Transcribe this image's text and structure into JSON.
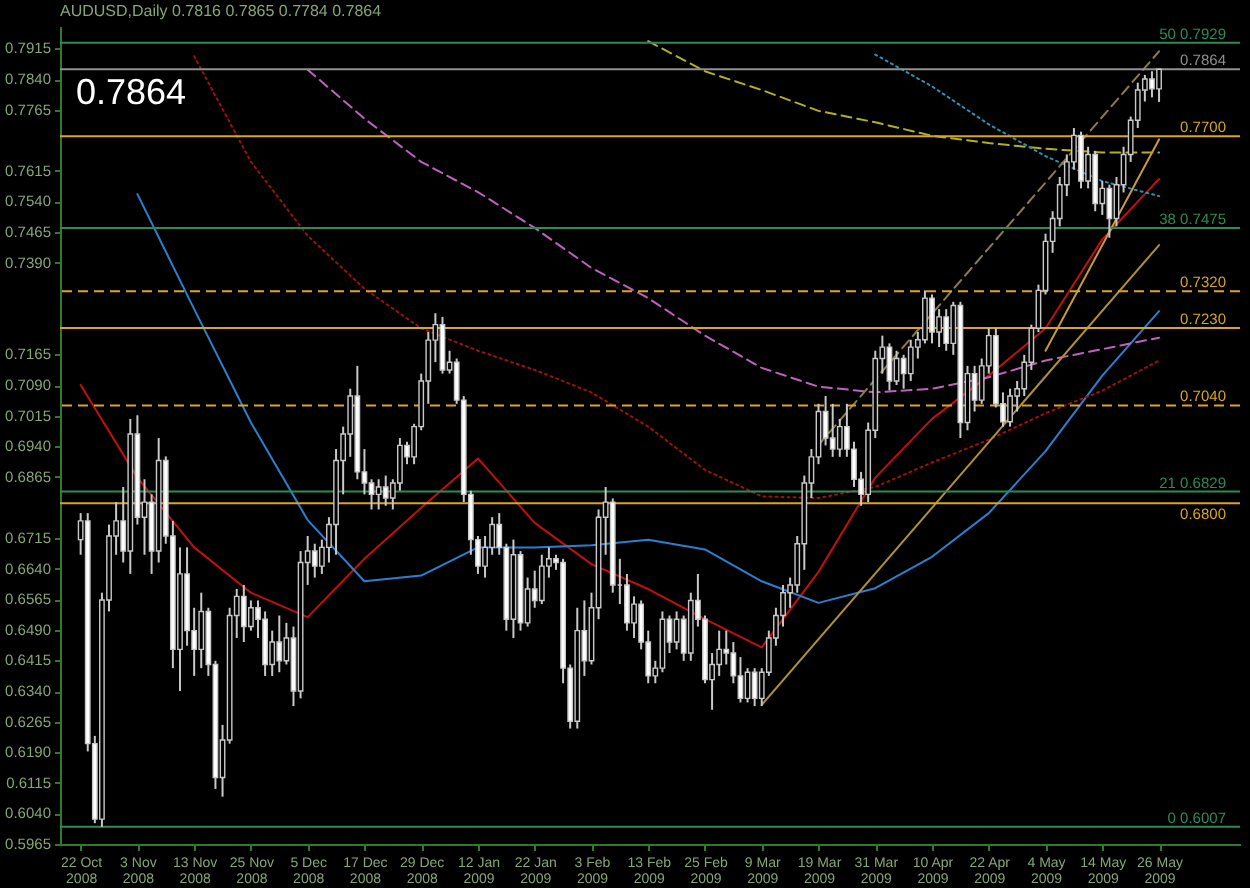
{
  "chart_data": {
    "type": "candlestick",
    "title": "AUDUSD,Daily  0.7816 0.7865 0.7784 0.7864",
    "annotations": [
      "0.7864"
    ],
    "categories": [
      "22 Oct 2008",
      null,
      null,
      null,
      null,
      null,
      null,
      null,
      "3 Nov 2008",
      null,
      null,
      null,
      null,
      null,
      null,
      null,
      "13 Nov 2008",
      null,
      null,
      null,
      null,
      null,
      null,
      null,
      "25 Nov 2008",
      null,
      null,
      null,
      null,
      null,
      null,
      null,
      "5 Dec 2008",
      null,
      null,
      null,
      null,
      null,
      null,
      null,
      "17 Dec 2008",
      null,
      null,
      null,
      null,
      null,
      null,
      null,
      "29 Dec 2008",
      null,
      null,
      null,
      null,
      null,
      null,
      null,
      "12 Jan 2009",
      null,
      null,
      null,
      null,
      null,
      null,
      null,
      "22 Jan 2009",
      null,
      null,
      null,
      null,
      null,
      null,
      null,
      "3 Feb 2009",
      null,
      null,
      null,
      null,
      null,
      null,
      null,
      "13 Feb 2009",
      null,
      null,
      null,
      null,
      null,
      null,
      null,
      "25 Feb 2009",
      null,
      null,
      null,
      null,
      null,
      null,
      null,
      "9 Mar 2009",
      null,
      null,
      null,
      null,
      null,
      null,
      null,
      "19 Mar 2009",
      null,
      null,
      null,
      null,
      null,
      null,
      null,
      "31 Mar 2009",
      null,
      null,
      null,
      null,
      null,
      null,
      null,
      "10 Apr 2009",
      null,
      null,
      null,
      null,
      null,
      null,
      null,
      "22 Apr 2009",
      null,
      null,
      null,
      null,
      null,
      null,
      null,
      "4 May 2009",
      null,
      null,
      null,
      null,
      null,
      null,
      null,
      "14 May 2009",
      null,
      null,
      null,
      null,
      null,
      null,
      null,
      "26 May 2009"
    ],
    "ohlc": [
      [
        0.6711,
        0.6776,
        0.6674,
        0.6757
      ],
      [
        0.6757,
        0.6776,
        0.6192,
        0.6211
      ],
      [
        0.6211,
        0.623,
        0.6016,
        0.6026
      ],
      [
        0.6026,
        0.6581,
        0.6007,
        0.6563
      ],
      [
        0.6563,
        0.6748,
        0.6535,
        0.672
      ],
      [
        0.672,
        0.6803,
        0.6674,
        0.6757
      ],
      [
        0.6757,
        0.684,
        0.6655,
        0.6683
      ],
      [
        0.6683,
        0.7007,
        0.6627,
        0.697
      ],
      [
        0.697,
        0.7016,
        0.6748,
        0.6766
      ],
      [
        0.6766,
        0.6859,
        0.6674,
        0.6803
      ],
      [
        0.6803,
        0.6822,
        0.6627,
        0.6683
      ],
      [
        0.6683,
        0.696,
        0.6655,
        0.6905
      ],
      [
        0.6905,
        0.6915,
        0.6701,
        0.672
      ],
      [
        0.672,
        0.6757,
        0.6396,
        0.6442
      ],
      [
        0.6442,
        0.6692,
        0.634,
        0.6627
      ],
      [
        0.6627,
        0.6692,
        0.6451,
        0.6488
      ],
      [
        0.6488,
        0.6544,
        0.6377,
        0.6442
      ],
      [
        0.6442,
        0.6581,
        0.6396,
        0.6535
      ],
      [
        0.6535,
        0.6544,
        0.6377,
        0.6405
      ],
      [
        0.6405,
        0.6414,
        0.61,
        0.6128
      ],
      [
        0.6128,
        0.6257,
        0.6081,
        0.622
      ],
      [
        0.622,
        0.6544,
        0.6211,
        0.6525
      ],
      [
        0.6525,
        0.659,
        0.647,
        0.6572
      ],
      [
        0.6572,
        0.66,
        0.646,
        0.6498
      ],
      [
        0.6498,
        0.6562,
        0.6488,
        0.6544
      ],
      [
        0.6544,
        0.6562,
        0.647,
        0.6516
      ],
      [
        0.6516,
        0.6535,
        0.6377,
        0.6405
      ],
      [
        0.6405,
        0.6488,
        0.6377,
        0.646
      ],
      [
        0.646,
        0.6525,
        0.6386,
        0.6414
      ],
      [
        0.6414,
        0.6507,
        0.6405,
        0.647
      ],
      [
        0.647,
        0.6498,
        0.6303,
        0.634
      ],
      [
        0.634,
        0.6683,
        0.6322,
        0.6655
      ],
      [
        0.6655,
        0.672,
        0.66,
        0.6683
      ],
      [
        0.6683,
        0.6701,
        0.6618,
        0.6646
      ],
      [
        0.6646,
        0.6711,
        0.6627,
        0.6692
      ],
      [
        0.6692,
        0.6766,
        0.6655,
        0.6748
      ],
      [
        0.6748,
        0.6933,
        0.6674,
        0.6905
      ],
      [
        0.6905,
        0.6988,
        0.6822,
        0.697
      ],
      [
        0.697,
        0.7081,
        0.6914,
        0.7063
      ],
      [
        0.7063,
        0.7137,
        0.6859,
        0.6877
      ],
      [
        0.6877,
        0.6933,
        0.6822,
        0.685
      ],
      [
        0.685,
        0.6859,
        0.6785,
        0.6822
      ],
      [
        0.6822,
        0.6859,
        0.6785,
        0.684
      ],
      [
        0.684,
        0.6868,
        0.6794,
        0.6813
      ],
      [
        0.6813,
        0.6859,
        0.6785,
        0.685
      ],
      [
        0.685,
        0.696,
        0.6831,
        0.6942
      ],
      [
        0.6942,
        0.6951,
        0.6896,
        0.6914
      ],
      [
        0.6914,
        0.6995,
        0.6896,
        0.6988
      ],
      [
        0.6988,
        0.7118,
        0.6979,
        0.71
      ],
      [
        0.71,
        0.722,
        0.7044,
        0.72
      ],
      [
        0.72,
        0.7266,
        0.7146,
        0.7238
      ],
      [
        0.7238,
        0.7257,
        0.7118,
        0.7127
      ],
      [
        0.7127,
        0.7174,
        0.7118,
        0.7146
      ],
      [
        0.7146,
        0.7155,
        0.7044,
        0.7053
      ],
      [
        0.7053,
        0.7063,
        0.6803,
        0.6822
      ],
      [
        0.6822,
        0.6831,
        0.6674,
        0.6711
      ],
      [
        0.6711,
        0.672,
        0.6627,
        0.6646
      ],
      [
        0.6646,
        0.672,
        0.6618,
        0.6692
      ],
      [
        0.6692,
        0.6766,
        0.6674,
        0.6748
      ],
      [
        0.6748,
        0.6776,
        0.6674,
        0.6692
      ],
      [
        0.6692,
        0.6701,
        0.6488,
        0.6516
      ],
      [
        0.6516,
        0.6711,
        0.647,
        0.6674
      ],
      [
        0.6674,
        0.6683,
        0.6488,
        0.6507
      ],
      [
        0.6507,
        0.6618,
        0.6498,
        0.659
      ],
      [
        0.659,
        0.6635,
        0.6544,
        0.6562
      ],
      [
        0.6562,
        0.6674,
        0.6553,
        0.6646
      ],
      [
        0.6646,
        0.6692,
        0.6618,
        0.6664
      ],
      [
        0.6664,
        0.6674,
        0.6637,
        0.6655
      ],
      [
        0.6655,
        0.6664,
        0.6359,
        0.6396
      ],
      [
        0.6396,
        0.6405,
        0.6248,
        0.6266
      ],
      [
        0.6266,
        0.6544,
        0.6248,
        0.6488
      ],
      [
        0.6488,
        0.6562,
        0.6377,
        0.6414
      ],
      [
        0.6414,
        0.6581,
        0.6405,
        0.6544
      ],
      [
        0.6544,
        0.6785,
        0.6516,
        0.6766
      ],
      [
        0.6766,
        0.684,
        0.6674,
        0.6803
      ],
      [
        0.6803,
        0.6812,
        0.6581,
        0.66
      ],
      [
        0.66,
        0.6664,
        0.6553,
        0.66
      ],
      [
        0.66,
        0.6627,
        0.6488,
        0.6507
      ],
      [
        0.6507,
        0.6572,
        0.647,
        0.6553
      ],
      [
        0.6553,
        0.6562,
        0.6442,
        0.646
      ],
      [
        0.646,
        0.6488,
        0.6359,
        0.6377
      ],
      [
        0.6377,
        0.6414,
        0.6359,
        0.6396
      ],
      [
        0.6396,
        0.6535,
        0.6386,
        0.6516
      ],
      [
        0.6516,
        0.6525,
        0.6433,
        0.646
      ],
      [
        0.646,
        0.6535,
        0.6442,
        0.6516
      ],
      [
        0.6516,
        0.6525,
        0.6414,
        0.6433
      ],
      [
        0.6433,
        0.6581,
        0.6414,
        0.6562
      ],
      [
        0.6562,
        0.6627,
        0.6498,
        0.6516
      ],
      [
        0.6516,
        0.6525,
        0.6359,
        0.6368
      ],
      [
        0.6368,
        0.6433,
        0.6294,
        0.6405
      ],
      [
        0.6405,
        0.6488,
        0.6377,
        0.6442
      ],
      [
        0.6442,
        0.6488,
        0.6405,
        0.6433
      ],
      [
        0.6433,
        0.646,
        0.6359,
        0.6377
      ],
      [
        0.6377,
        0.6423,
        0.6312,
        0.6322
      ],
      [
        0.6322,
        0.6396,
        0.6312,
        0.6386
      ],
      [
        0.6386,
        0.6396,
        0.6303,
        0.6322
      ],
      [
        0.6322,
        0.6396,
        0.6303,
        0.6386
      ],
      [
        0.6386,
        0.6488,
        0.6377,
        0.647
      ],
      [
        0.647,
        0.6544,
        0.6451,
        0.6525
      ],
      [
        0.6525,
        0.66,
        0.6498,
        0.6581
      ],
      [
        0.6581,
        0.6618,
        0.6544,
        0.66
      ],
      [
        0.66,
        0.672,
        0.6581,
        0.6701
      ],
      [
        0.6701,
        0.6868,
        0.6637,
        0.685
      ],
      [
        0.685,
        0.6933,
        0.6813,
        0.6914
      ],
      [
        0.6914,
        0.7044,
        0.6896,
        0.7025
      ],
      [
        0.7025,
        0.7063,
        0.6942,
        0.696
      ],
      [
        0.696,
        0.7044,
        0.6914,
        0.6933
      ],
      [
        0.6933,
        0.7007,
        0.6914,
        0.6988
      ],
      [
        0.6988,
        0.7044,
        0.6914,
        0.6933
      ],
      [
        0.6933,
        0.6951,
        0.684,
        0.6859
      ],
      [
        0.6859,
        0.6877,
        0.6794,
        0.6822
      ],
      [
        0.6822,
        0.6998,
        0.6803,
        0.6979
      ],
      [
        0.6979,
        0.7174,
        0.696,
        0.7155
      ],
      [
        0.7155,
        0.7211,
        0.7118,
        0.7183
      ],
      [
        0.7183,
        0.7192,
        0.7077,
        0.71
      ],
      [
        0.71,
        0.7174,
        0.709,
        0.7155
      ],
      [
        0.7155,
        0.7164,
        0.7081,
        0.7118
      ],
      [
        0.7118,
        0.7201,
        0.71,
        0.7183
      ],
      [
        0.7183,
        0.722,
        0.7155,
        0.7201
      ],
      [
        0.7201,
        0.7322,
        0.7192,
        0.7303
      ],
      [
        0.7303,
        0.7312,
        0.7192,
        0.722
      ],
      [
        0.722,
        0.7276,
        0.7183,
        0.7257
      ],
      [
        0.7257,
        0.7276,
        0.7174,
        0.7192
      ],
      [
        0.7192,
        0.7294,
        0.7164,
        0.7285
      ],
      [
        0.7285,
        0.7294,
        0.696,
        0.6998
      ],
      [
        0.6998,
        0.7137,
        0.6979,
        0.7118
      ],
      [
        0.7118,
        0.7137,
        0.7025,
        0.7053
      ],
      [
        0.7053,
        0.7155,
        0.7044,
        0.7137
      ],
      [
        0.7137,
        0.7229,
        0.7118,
        0.7211
      ],
      [
        0.7211,
        0.7229,
        0.7035,
        0.7044
      ],
      [
        0.7044,
        0.7072,
        0.6988,
        0.7
      ],
      [
        0.7,
        0.7081,
        0.6988,
        0.7063
      ],
      [
        0.7063,
        0.71,
        0.7025,
        0.7081
      ],
      [
        0.7081,
        0.7164,
        0.7063,
        0.7146
      ],
      [
        0.7146,
        0.7238,
        0.7127,
        0.7229
      ],
      [
        0.7229,
        0.7336,
        0.722,
        0.7322
      ],
      [
        0.7322,
        0.7461,
        0.7312,
        0.7442
      ],
      [
        0.7442,
        0.7516,
        0.7414,
        0.7498
      ],
      [
        0.7498,
        0.76,
        0.7479,
        0.7581
      ],
      [
        0.7581,
        0.7655,
        0.7553,
        0.7637
      ],
      [
        0.7637,
        0.772,
        0.7618,
        0.7702
      ],
      [
        0.7702,
        0.7711,
        0.7572,
        0.759
      ],
      [
        0.759,
        0.7674,
        0.7572,
        0.7655
      ],
      [
        0.7655,
        0.7664,
        0.7516,
        0.7535
      ],
      [
        0.7535,
        0.759,
        0.7507,
        0.7572
      ],
      [
        0.7572,
        0.7581,
        0.7451,
        0.7498
      ],
      [
        0.7498,
        0.76,
        0.7479,
        0.7581
      ],
      [
        0.7581,
        0.7674,
        0.7562,
        0.7655
      ],
      [
        0.7655,
        0.7748,
        0.7637,
        0.7739
      ],
      [
        0.7739,
        0.7831,
        0.772,
        0.7813
      ],
      [
        0.7813,
        0.785,
        0.7785,
        0.784
      ],
      [
        0.784,
        0.7859,
        0.7795,
        0.7816
      ],
      [
        0.7816,
        0.7865,
        0.7784,
        0.7864
      ]
    ],
    "series": [
      {
        "type": "line",
        "color": "#c01010",
        "line_style": "solid",
        "x": [
          "22 Oct 2008",
          "3 Nov 2008",
          "13 Nov 2008",
          "25 Nov 2008",
          "5 Dec 2008",
          "17 Dec 2008",
          "29 Dec 2008",
          "12 Jan 2009",
          "22 Jan 2009",
          "3 Feb 2009",
          "13 Feb 2009",
          "25 Feb 2009",
          "9 Mar 2009",
          "19 Mar 2009",
          "31 Mar 2009",
          "10 Apr 2009",
          "22 Apr 2009",
          "4 May 2009",
          "14 May 2009",
          "26 May 2009"
        ],
        "values": [
          0.709,
          0.6863,
          0.6692,
          0.6581,
          0.6521,
          0.6664,
          0.6789,
          0.691,
          0.6752,
          0.6651,
          0.659,
          0.6516,
          0.6447,
          0.6632,
          0.6863,
          0.7007,
          0.7113,
          0.7229,
          0.7447,
          0.7595
        ]
      },
      {
        "type": "line",
        "color": "#2a80d0",
        "line_style": "solid",
        "x": [
          "3 Nov 2008",
          "13 Nov 2008",
          "25 Nov 2008",
          "5 Dec 2008",
          "17 Dec 2008",
          "29 Dec 2008",
          "12 Jan 2009",
          "22 Jan 2009",
          "3 Feb 2009",
          "13 Feb 2009",
          "25 Feb 2009",
          "9 Mar 2009",
          "19 Mar 2009",
          "31 Mar 2009",
          "10 Apr 2009",
          "22 Apr 2009",
          "4 May 2009",
          "14 May 2009",
          "26 May 2009"
        ],
        "values": [
          0.7558,
          0.7276,
          0.6998,
          0.6759,
          0.6609,
          0.6623,
          0.6692,
          0.6692,
          0.6697,
          0.6711,
          0.6687,
          0.6609,
          0.6556,
          0.6592,
          0.6669,
          0.6776,
          0.6928,
          0.7113,
          0.7271
        ]
      },
      {
        "type": "line",
        "color": "#c060c0",
        "line_style": "dashed",
        "x": [
          "5 Dec 2008",
          "17 Dec 2008",
          "29 Dec 2008",
          "12 Jan 2009",
          "22 Jan 2009",
          "3 Feb 2009",
          "13 Feb 2009",
          "25 Feb 2009",
          "9 Mar 2009",
          "19 Mar 2009",
          "31 Mar 2009",
          "10 Apr 2009",
          "22 Apr 2009",
          "4 May 2009",
          "14 May 2009",
          "26 May 2009"
        ],
        "values": [
          0.7863,
          0.7743,
          0.7637,
          0.7563,
          0.7475,
          0.7377,
          0.7303,
          0.7211,
          0.7132,
          0.7086,
          0.7072,
          0.7081,
          0.7109,
          0.715,
          0.7178,
          0.7206
        ]
      },
      {
        "type": "line",
        "color": "#a01010",
        "line_style": "dotted",
        "x": [
          "13 Nov 2008",
          "25 Nov 2008",
          "5 Dec 2008",
          "17 Dec 2008",
          "29 Dec 2008",
          "12 Jan 2009",
          "22 Jan 2009",
          "3 Feb 2009",
          "13 Feb 2009",
          "25 Feb 2009",
          "9 Mar 2009",
          "19 Mar 2009",
          "31 Mar 2009",
          "10 Apr 2009",
          "22 Apr 2009",
          "4 May 2009",
          "14 May 2009",
          "26 May 2009"
        ],
        "values": [
          0.7896,
          0.7637,
          0.7456,
          0.7326,
          0.7229,
          0.7174,
          0.7127,
          0.7072,
          0.6988,
          0.6882,
          0.6817,
          0.6813,
          0.684,
          0.69,
          0.6956,
          0.7021,
          0.7076,
          0.715
        ]
      },
      {
        "type": "line",
        "color": "#b0b020",
        "line_style": "dashed",
        "x": [
          "13 Feb 2009",
          "25 Feb 2009",
          "9 Mar 2009",
          "19 Mar 2009",
          "31 Mar 2009",
          "10 Apr 2009",
          "22 Apr 2009",
          "4 May 2009",
          "14 May 2009",
          "26 May 2009"
        ],
        "values": [
          0.7933,
          0.7859,
          0.7813,
          0.7762,
          0.7734,
          0.7701,
          0.7683,
          0.7669,
          0.766,
          0.766
        ]
      },
      {
        "type": "line",
        "color": "#3090b0",
        "line_style": "dotted",
        "x": [
          "31 Mar 2009",
          "10 Apr 2009",
          "22 Apr 2009",
          "4 May 2009",
          "14 May 2009",
          "26 May 2009"
        ],
        "values": [
          0.79,
          0.7822,
          0.7729,
          0.7651,
          0.759,
          0.7553
        ]
      },
      {
        "type": "line",
        "color": "#b09030",
        "line_style": "solid",
        "x": [
          "9 Mar 2009",
          "26 May 2009"
        ],
        "values": [
          0.6306,
          0.7433
        ]
      },
      {
        "type": "line",
        "color": "#8c7c48",
        "line_style": "dashed",
        "x": [
          "19 Mar 2009",
          "26 May 2009"
        ],
        "values": [
          0.6943,
          0.7908
        ]
      },
      {
        "type": "line",
        "color": "#c89a3a",
        "line_style": "solid",
        "x": [
          "4 May 2009",
          "26 May 2009"
        ],
        "values": [
          0.7174,
          0.7692
        ]
      }
    ],
    "ref_lines": [
      {
        "axis": "y",
        "value": 0.7929,
        "label": "50 0.7929",
        "color": "#2e8b57"
      },
      {
        "axis": "y",
        "value": 0.7864,
        "label": "0.7864",
        "color": "#909090"
      },
      {
        "axis": "y",
        "value": 0.77,
        "label": "0.7700",
        "color": "#daa520"
      },
      {
        "axis": "y",
        "value": 0.7475,
        "label": "38 0.7475",
        "color": "#2e8b57"
      },
      {
        "axis": "y",
        "value": 0.732,
        "label": "0.7320",
        "color": "#daa520",
        "line_style": "dashed"
      },
      {
        "axis": "y",
        "value": 0.723,
        "label": "0.7230",
        "color": "#daa520"
      },
      {
        "axis": "y",
        "value": 0.704,
        "label": "0.7040",
        "color": "#daa520",
        "line_style": "dashed"
      },
      {
        "axis": "y",
        "value": 0.6829,
        "label": "21 0.6829",
        "color": "#2e8b57"
      },
      {
        "axis": "y",
        "value": 0.68,
        "label": "0.6800",
        "color": "#daa520"
      },
      {
        "axis": "y",
        "value": 0.6007,
        "label": "0 0.6007",
        "color": "#2e8b57"
      }
    ],
    "ylim": [
      0.5965,
      0.797
    ],
    "yticks": [
      0.5965,
      {
        "value": 0.604,
        "label": "0.6040"
      },
      0.6115,
      {
        "value": 0.619,
        "label": "0.6190"
      },
      0.6265,
      {
        "value": 0.634,
        "label": "0.6340"
      },
      0.6415,
      {
        "value": 0.649,
        "label": "0.6490"
      },
      0.6565,
      {
        "value": 0.664,
        "label": "0.6640"
      },
      0.6715,
      0.6865,
      {
        "value": 0.694,
        "label": "0.6940"
      },
      0.7015,
      {
        "value": 0.709,
        "label": "0.7090"
      },
      0.7165,
      {
        "value": 0.739,
        "label": "0.7390"
      },
      0.7465,
      {
        "value": 0.754,
        "label": "0.7540"
      },
      0.7615,
      0.7765,
      {
        "value": 0.784,
        "label": "0.7840"
      },
      0.7915
    ]
  }
}
